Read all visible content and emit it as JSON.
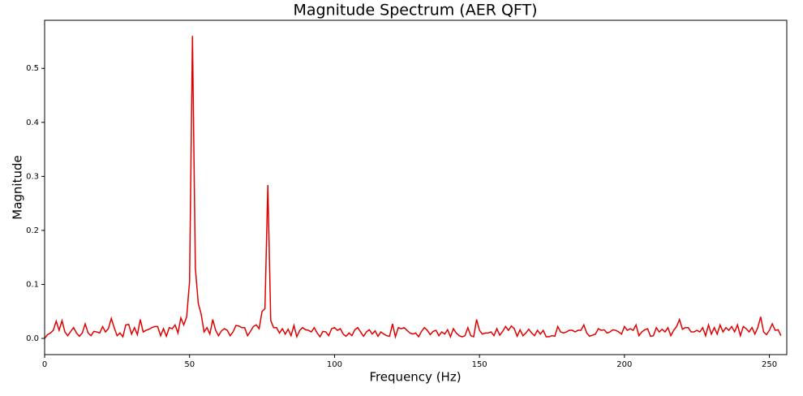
{
  "chart_data": {
    "type": "line",
    "title": "Magnitude Spectrum (AER QFT)",
    "xlabel": "Frequency (Hz)",
    "ylabel": "Magnitude",
    "color": "#e00000",
    "x": [
      0,
      1,
      2,
      3,
      4,
      5,
      6,
      7,
      8,
      9,
      10,
      11,
      12,
      13,
      14,
      15,
      16,
      17,
      18,
      19,
      20,
      21,
      22,
      23,
      24,
      25,
      26,
      27,
      28,
      29,
      30,
      31,
      32,
      33,
      34,
      35,
      36,
      37,
      38,
      39,
      40,
      41,
      42,
      43,
      44,
      45,
      46,
      47,
      48,
      49,
      50,
      51,
      52,
      53,
      54,
      55,
      56,
      57,
      58,
      59,
      60,
      61,
      62,
      63,
      64,
      65,
      66,
      67,
      68,
      69,
      70,
      71,
      72,
      73,
      74,
      75,
      76,
      77,
      78,
      79,
      80,
      81,
      82,
      83,
      84,
      85,
      86,
      87,
      88,
      89,
      90,
      91,
      92,
      93,
      94,
      95,
      96,
      97,
      98,
      99,
      100,
      101,
      102,
      103,
      104,
      105,
      106,
      107,
      108,
      109,
      110,
      111,
      112,
      113,
      114,
      115,
      116,
      117,
      118,
      119,
      120,
      121,
      122,
      123,
      124,
      125,
      126,
      127,
      128,
      129,
      130,
      131,
      132,
      133,
      134,
      135,
      136,
      137,
      138,
      139,
      140,
      141,
      142,
      143,
      144,
      145,
      146,
      147,
      148,
      149,
      150,
      151,
      152,
      153,
      154,
      155,
      156,
      157,
      158,
      159,
      160,
      161,
      162,
      163,
      164,
      165,
      166,
      167,
      168,
      169,
      170,
      171,
      172,
      173,
      174,
      175,
      176,
      177,
      178,
      179,
      180,
      181,
      182,
      183,
      184,
      185,
      186,
      187,
      188,
      189,
      190,
      191,
      192,
      193,
      194,
      195,
      196,
      197,
      198,
      199,
      200,
      201,
      202,
      203,
      204,
      205,
      206,
      207,
      208,
      209,
      210,
      211,
      212,
      213,
      214,
      215,
      216,
      217,
      218,
      219,
      220,
      221,
      222,
      223,
      224,
      225,
      226,
      227,
      228,
      229,
      230,
      231,
      232,
      233,
      234,
      235,
      236,
      237,
      238,
      239,
      240,
      241,
      242,
      243,
      244,
      245,
      246,
      247,
      248,
      249,
      250,
      251,
      252,
      253,
      254
    ],
    "values": [
      0.0,
      0.007,
      0.01,
      0.015,
      0.032,
      0.015,
      0.033,
      0.012,
      0.005,
      0.013,
      0.02,
      0.01,
      0.004,
      0.01,
      0.027,
      0.01,
      0.005,
      0.013,
      0.012,
      0.01,
      0.022,
      0.012,
      0.018,
      0.037,
      0.02,
      0.005,
      0.01,
      0.003,
      0.025,
      0.026,
      0.008,
      0.02,
      0.007,
      0.035,
      0.012,
      0.015,
      0.017,
      0.02,
      0.022,
      0.022,
      0.005,
      0.018,
      0.004,
      0.02,
      0.018,
      0.025,
      0.01,
      0.038,
      0.025,
      0.04,
      0.105,
      0.56,
      0.13,
      0.065,
      0.045,
      0.012,
      0.02,
      0.008,
      0.035,
      0.015,
      0.005,
      0.014,
      0.018,
      0.015,
      0.005,
      0.012,
      0.024,
      0.023,
      0.02,
      0.02,
      0.005,
      0.013,
      0.022,
      0.025,
      0.018,
      0.05,
      0.055,
      0.284,
      0.033,
      0.02,
      0.02,
      0.01,
      0.018,
      0.008,
      0.017,
      0.005,
      0.024,
      0.003,
      0.015,
      0.02,
      0.016,
      0.015,
      0.012,
      0.02,
      0.01,
      0.003,
      0.013,
      0.012,
      0.005,
      0.018,
      0.02,
      0.015,
      0.018,
      0.008,
      0.004,
      0.01,
      0.005,
      0.016,
      0.02,
      0.012,
      0.004,
      0.012,
      0.016,
      0.008,
      0.014,
      0.004,
      0.012,
      0.008,
      0.005,
      0.004,
      0.027,
      0.003,
      0.02,
      0.018,
      0.02,
      0.015,
      0.01,
      0.008,
      0.01,
      0.003,
      0.013,
      0.02,
      0.015,
      0.007,
      0.013,
      0.015,
      0.005,
      0.012,
      0.008,
      0.016,
      0.003,
      0.018,
      0.01,
      0.005,
      0.003,
      0.005,
      0.02,
      0.005,
      0.003,
      0.035,
      0.015,
      0.008,
      0.01,
      0.01,
      0.012,
      0.005,
      0.018,
      0.006,
      0.013,
      0.022,
      0.015,
      0.023,
      0.018,
      0.004,
      0.016,
      0.005,
      0.01,
      0.017,
      0.01,
      0.005,
      0.015,
      0.008,
      0.015,
      0.003,
      0.003,
      0.005,
      0.004,
      0.022,
      0.012,
      0.01,
      0.012,
      0.015,
      0.015,
      0.012,
      0.015,
      0.015,
      0.025,
      0.01,
      0.004,
      0.006,
      0.008,
      0.018,
      0.015,
      0.016,
      0.01,
      0.012,
      0.016,
      0.015,
      0.012,
      0.008,
      0.022,
      0.015,
      0.018,
      0.015,
      0.025,
      0.005,
      0.012,
      0.016,
      0.018,
      0.004,
      0.005,
      0.02,
      0.012,
      0.017,
      0.012,
      0.02,
      0.005,
      0.015,
      0.022,
      0.035,
      0.017,
      0.02,
      0.02,
      0.012,
      0.012,
      0.015,
      0.012,
      0.02,
      0.005,
      0.025,
      0.008,
      0.02,
      0.008,
      0.025,
      0.012,
      0.02,
      0.015,
      0.022,
      0.012,
      0.025,
      0.005,
      0.022,
      0.018,
      0.012,
      0.02,
      0.008,
      0.02,
      0.04,
      0.012,
      0.007,
      0.015,
      0.027,
      0.015,
      0.016,
      0.005
    ],
    "xlim": [
      0,
      256
    ],
    "ylim": [
      -0.03,
      0.589
    ],
    "xticks": [
      0,
      50,
      100,
      150,
      200,
      250
    ],
    "yticks": [
      {
        "value": 0,
        "label": "0.0"
      },
      0.1,
      0.2,
      0.3,
      0.4,
      0.5
    ]
  }
}
